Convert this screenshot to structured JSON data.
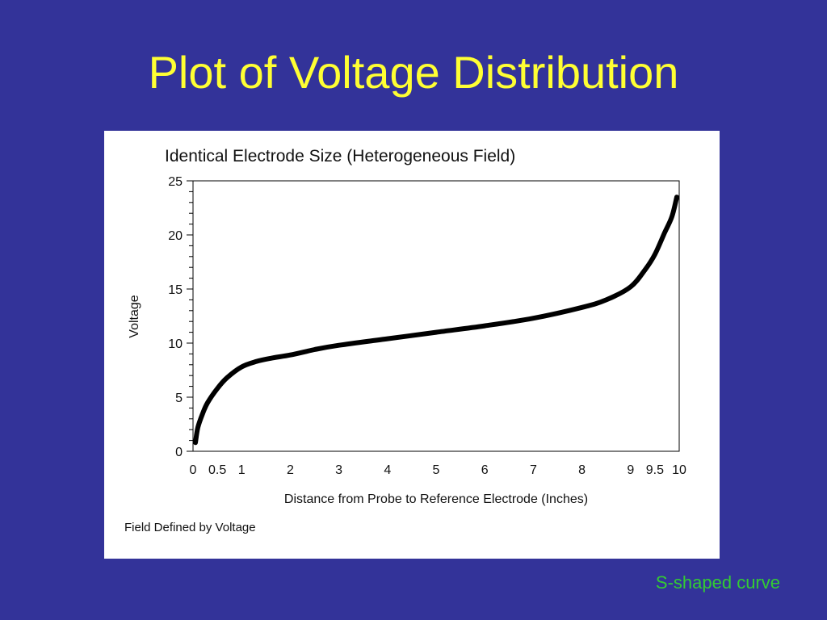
{
  "slide": {
    "title": "Plot of Voltage Distribution",
    "caption": "S-shaped curve"
  },
  "colors": {
    "background": "#333399",
    "title": "#ffff33",
    "caption": "#33cc33",
    "panel": "#ffffff",
    "curve": "#000000"
  },
  "chart_data": {
    "type": "line",
    "title": "Identical Electrode Size (Heterogeneous Field)",
    "xlabel": "Distance from Probe to Reference Electrode (Inches)",
    "ylabel": "Voltage",
    "footnote": "Field Defined by Voltage",
    "xlim": [
      0,
      10
    ],
    "ylim": [
      0,
      25
    ],
    "x_ticks": [
      0,
      1,
      2,
      3,
      4,
      5,
      6,
      7,
      8,
      9,
      10
    ],
    "x_tick_labels": [
      "0",
      "1",
      "2",
      "3",
      "4",
      "5",
      "6",
      "7",
      "8",
      "9",
      "10"
    ],
    "x_extra_ticks": [
      0.5,
      9.5
    ],
    "x_extra_tick_labels": [
      "0.5",
      "9.5"
    ],
    "y_ticks": [
      0,
      5,
      10,
      15,
      20,
      25
    ],
    "y_tick_labels": [
      "0",
      "5",
      "10",
      "15",
      "20",
      "25"
    ],
    "y_minor_step": 1,
    "grid": false,
    "legend": "none",
    "series": [
      {
        "x": [
          0.05,
          0.1,
          0.2,
          0.3,
          0.5,
          0.7,
          1.0,
          1.3,
          1.6,
          2.0,
          2.5,
          3.0,
          4.0,
          5.0,
          6.0,
          7.0,
          8.0,
          8.5,
          9.0,
          9.3,
          9.5,
          9.7,
          9.85,
          9.95
        ],
        "y": [
          0.8,
          2.2,
          3.5,
          4.5,
          5.8,
          6.8,
          7.8,
          8.3,
          8.6,
          8.9,
          9.4,
          9.8,
          10.4,
          11.0,
          11.6,
          12.3,
          13.3,
          14.0,
          15.2,
          16.8,
          18.2,
          20.2,
          21.7,
          23.5
        ]
      }
    ]
  }
}
